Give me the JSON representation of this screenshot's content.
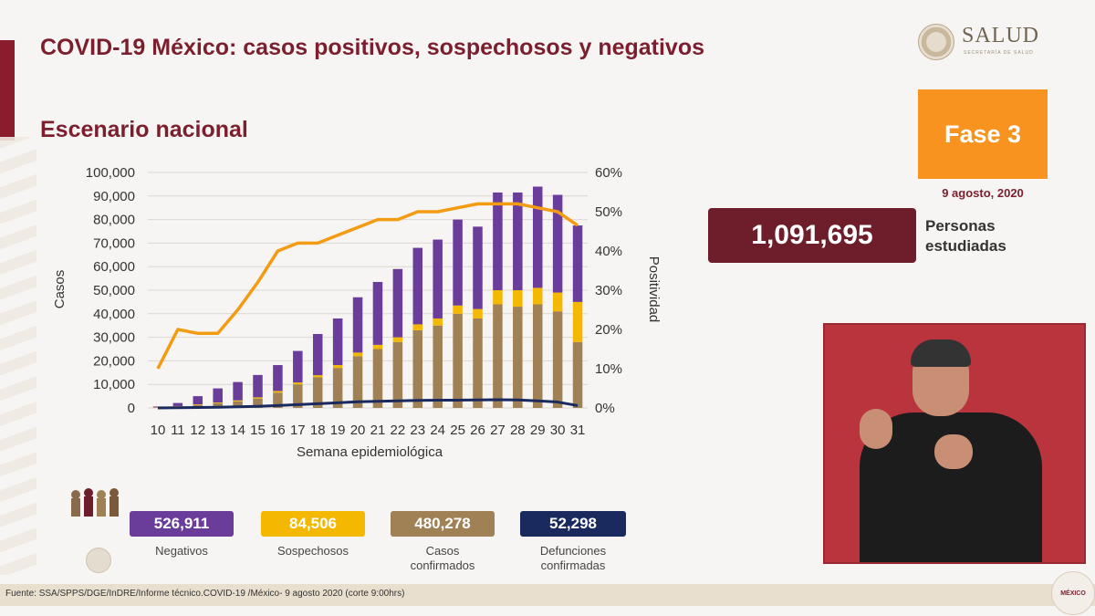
{
  "header": {
    "title": "COVID-19 México: casos positivos, sospechosos y negativos",
    "subtitle": "Escenario nacional"
  },
  "logo": {
    "name": "SALUD",
    "sub": "SECRETARÍA DE SALUD"
  },
  "phase": {
    "label": "Fase 3",
    "date": "9 agosto, 2020",
    "color": "#f7931e"
  },
  "total": {
    "value": "1,091,695",
    "label_line1": "Personas",
    "label_line2": "estudiadas"
  },
  "stats": [
    {
      "value": "526,911",
      "label": "Negativos",
      "color": "#6a3d9a"
    },
    {
      "value": "84,506",
      "label": "Sospechosos",
      "color": "#f5b800"
    },
    {
      "value": "480,278",
      "label": "Casos confirmados",
      "color": "#a08055"
    },
    {
      "value": "52,298",
      "label": "Defunciones confirmadas",
      "color": "#1a2a5e"
    }
  ],
  "footer": {
    "source": "Fuente: SSA/SPPS/DGE/InDRE/Informe técnico.COVID-19 /México- 9 agosto 2020 (corte 9:00hrs)"
  },
  "badge": {
    "text": "MÉXICO"
  },
  "chart_data": {
    "type": "bar",
    "xlabel": "Semana epidemiológica",
    "ylabel": "Casos",
    "y2label": "Positividad",
    "ylim": [
      0,
      100000
    ],
    "y2lim": [
      0,
      60
    ],
    "yticks": [
      "0",
      "10,000",
      "20,000",
      "30,000",
      "40,000",
      "50,000",
      "60,000",
      "70,000",
      "80,000",
      "90,000",
      "100,000"
    ],
    "y2ticks": [
      "0%",
      "10%",
      "20%",
      "30%",
      "40%",
      "50%",
      "60%"
    ],
    "categories": [
      "10",
      "11",
      "12",
      "13",
      "14",
      "15",
      "16",
      "17",
      "18",
      "19",
      "20",
      "21",
      "22",
      "23",
      "24",
      "25",
      "26",
      "27",
      "28",
      "29",
      "30",
      "31"
    ],
    "series": [
      {
        "kind": "stacked-bar",
        "color": "#a08055",
        "values": [
          200,
          600,
          1200,
          2000,
          2800,
          4000,
          6500,
          10000,
          13000,
          17000,
          22000,
          25000,
          28000,
          33000,
          35000,
          40000,
          38000,
          44000,
          43000,
          44000,
          41000,
          28000
        ]
      },
      {
        "kind": "stacked-bar",
        "color": "#f5b800",
        "values": [
          100,
          200,
          300,
          300,
          400,
          500,
          700,
          800,
          900,
          1200,
          1500,
          1800,
          2000,
          2500,
          3000,
          3500,
          4000,
          6000,
          7000,
          7000,
          8000,
          17000
        ]
      },
      {
        "kind": "stacked-bar",
        "color": "#6a3d9a",
        "values": [
          300,
          1300,
          3500,
          6000,
          7800,
          9500,
          11000,
          13400,
          17500,
          19800,
          23500,
          26700,
          29000,
          32500,
          33500,
          36500,
          35000,
          41500,
          41500,
          43000,
          41500,
          32500
        ]
      },
      {
        "kind": "line",
        "axis": "left",
        "color": "#1a2a5e",
        "values": [
          0,
          100,
          200,
          300,
          500,
          700,
          1000,
          1400,
          1800,
          2200,
          2600,
          2800,
          3000,
          3200,
          3300,
          3300,
          3400,
          3500,
          3400,
          3000,
          2500,
          1000
        ]
      },
      {
        "kind": "line",
        "axis": "right",
        "color": "#f39c12",
        "values": [
          10,
          20,
          19,
          19,
          25,
          32,
          40,
          42,
          42,
          44,
          46,
          48,
          48,
          50,
          50,
          51,
          52,
          52,
          52,
          51,
          50,
          46.5
        ]
      }
    ]
  }
}
